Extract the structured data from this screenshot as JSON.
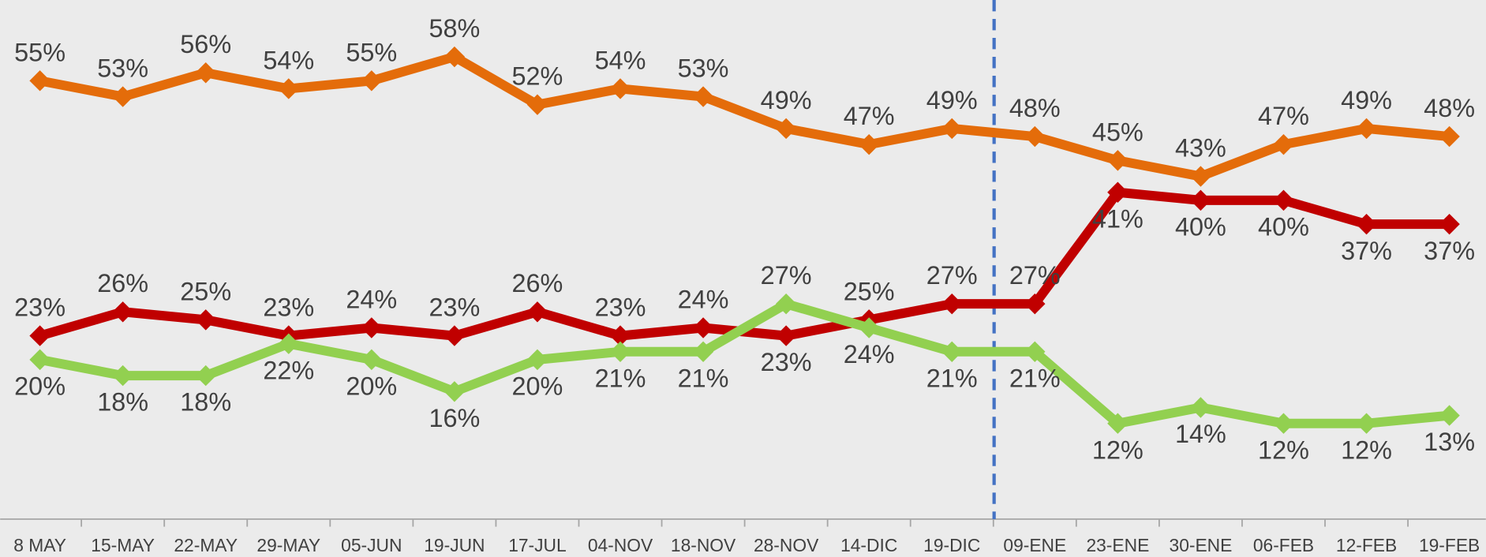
{
  "chart_data": {
    "type": "line",
    "categories": [
      "8 MAY",
      "15-MAY",
      "22-MAY",
      "29-MAY",
      "05-JUN",
      "19-JUN",
      "17-JUL",
      "04-NOV",
      "18-NOV",
      "28-NOV",
      "14-DIC",
      "19-DIC",
      "09-ENE",
      "23-ENE",
      "30-ENE",
      "06-FEB",
      "12-FEB",
      "19-FEB"
    ],
    "series": [
      {
        "color": "#e46c0a",
        "values": [
          55,
          53,
          56,
          54,
          55,
          58,
          52,
          54,
          53,
          49,
          47,
          49,
          48,
          45,
          43,
          47,
          49,
          48
        ],
        "value_labels": [
          "55%",
          "53%",
          "56%",
          "54%",
          "55%",
          "58%",
          "52%",
          "54%",
          "53%",
          "49%",
          "47%",
          "49%",
          "48%",
          "45%",
          "43%",
          "47%",
          "49%",
          "48%"
        ]
      },
      {
        "color": "#c00000",
        "values": [
          23,
          26,
          25,
          23,
          24,
          23,
          26,
          23,
          24,
          23,
          25,
          27,
          27,
          41,
          40,
          40,
          37,
          37
        ],
        "value_labels": [
          "23%",
          "26%",
          "25%",
          "23%",
          "24%",
          "23%",
          "26%",
          "23%",
          "24%",
          "23%",
          "25%",
          "27%",
          "27%",
          "41%",
          "40%",
          "40%",
          "37%",
          "37%"
        ]
      },
      {
        "color": "#92d050",
        "values": [
          20,
          18,
          18,
          22,
          20,
          16,
          20,
          21,
          21,
          27,
          24,
          21,
          21,
          12,
          14,
          12,
          12,
          13
        ],
        "value_labels": [
          "20%",
          "18%",
          "18%",
          "22%",
          "20%",
          "16%",
          "20%",
          "21%",
          "21%",
          "27%",
          "24%",
          "21%",
          "21%",
          "12%",
          "14%",
          "12%",
          "12%",
          "13%"
        ]
      }
    ]
  }
}
